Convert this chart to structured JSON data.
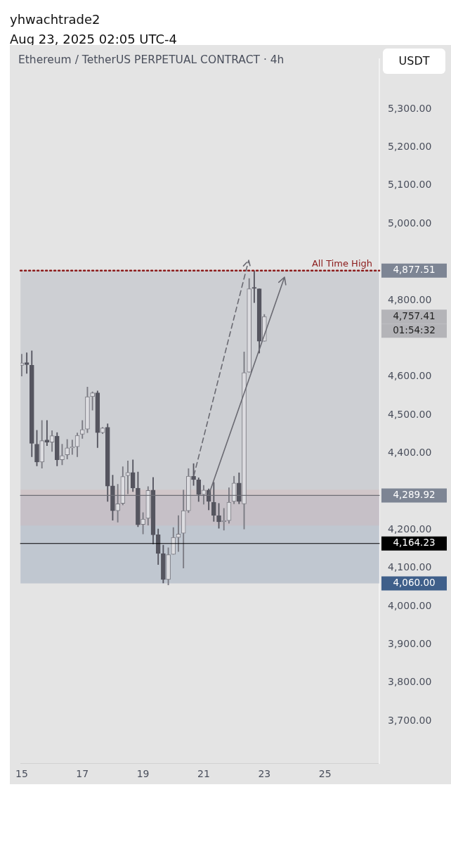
{
  "chart_data": {
    "type": "candlestick",
    "title": "Ethereum / TetherUS PERPETUAL CONTRACT · 4h",
    "subtitle": "yhwachtrade2",
    "ylabel": "USDT",
    "x": [
      "2025-08-15T00:00",
      "2025-08-15T04:00",
      "2025-08-15T08:00",
      "2025-08-15T12:00",
      "2025-08-15T16:00",
      "2025-08-15T20:00",
      "2025-08-16T00:00",
      "2025-08-16T04:00",
      "2025-08-16T08:00",
      "2025-08-16T12:00",
      "2025-08-16T16:00",
      "2025-08-16T20:00",
      "2025-08-17T00:00",
      "2025-08-17T04:00",
      "2025-08-17T08:00",
      "2025-08-17T12:00",
      "2025-08-17T16:00",
      "2025-08-17T20:00",
      "2025-08-18T00:00",
      "2025-08-18T04:00",
      "2025-08-18T08:00",
      "2025-08-18T12:00",
      "2025-08-18T16:00",
      "2025-08-18T20:00",
      "2025-08-19T00:00",
      "2025-08-19T04:00",
      "2025-08-19T08:00",
      "2025-08-19T12:00",
      "2025-08-19T16:00",
      "2025-08-19T20:00",
      "2025-08-20T00:00",
      "2025-08-20T04:00",
      "2025-08-20T08:00",
      "2025-08-20T12:00",
      "2025-08-20T16:00",
      "2025-08-20T20:00",
      "2025-08-21T00:00",
      "2025-08-21T04:00",
      "2025-08-21T08:00",
      "2025-08-21T12:00",
      "2025-08-21T16:00",
      "2025-08-21T20:00",
      "2025-08-22T00:00",
      "2025-08-22T04:00",
      "2025-08-22T08:00",
      "2025-08-22T12:00",
      "2025-08-22T16:00",
      "2025-08-22T20:00",
      "2025-08-23T00:00"
    ],
    "ohlc": [
      [
        4630,
        4659,
        4602,
        4636
      ],
      [
        4637,
        4663,
        4609,
        4632
      ],
      [
        4630,
        4668,
        4391,
        4426
      ],
      [
        4424,
        4460,
        4367,
        4377
      ],
      [
        4377,
        4486,
        4361,
        4433
      ],
      [
        4435,
        4486,
        4420,
        4429
      ],
      [
        4429,
        4459,
        4405,
        4446
      ],
      [
        4445,
        4454,
        4367,
        4383
      ],
      [
        4383,
        4424,
        4370,
        4394
      ],
      [
        4396,
        4436,
        4385,
        4414
      ],
      [
        4414,
        4435,
        4397,
        4417
      ],
      [
        4417,
        4453,
        4391,
        4447
      ],
      [
        4450,
        4486,
        4439,
        4462
      ],
      [
        4463,
        4573,
        4454,
        4548
      ],
      [
        4548,
        4561,
        4513,
        4558
      ],
      [
        4558,
        4563,
        4415,
        4454
      ],
      [
        4454,
        4468,
        4451,
        4466
      ],
      [
        4468,
        4477,
        4274,
        4314
      ],
      [
        4315,
        4343,
        4225,
        4250
      ],
      [
        4250,
        4319,
        4220,
        4268
      ],
      [
        4269,
        4365,
        4265,
        4339
      ],
      [
        4342,
        4380,
        4294,
        4350
      ],
      [
        4350,
        4383,
        4300,
        4309
      ],
      [
        4309,
        4351,
        4208,
        4213
      ],
      [
        4214,
        4245,
        4189,
        4228
      ],
      [
        4230,
        4313,
        4212,
        4303
      ],
      [
        4304,
        4337,
        4163,
        4187
      ],
      [
        4187,
        4202,
        4109,
        4138
      ],
      [
        4138,
        4160,
        4061,
        4070
      ],
      [
        4070,
        4153,
        4056,
        4135
      ],
      [
        4136,
        4206,
        4136,
        4180
      ],
      [
        4180,
        4237,
        4143,
        4189
      ],
      [
        4191,
        4304,
        4100,
        4250
      ],
      [
        4250,
        4360,
        4245,
        4340
      ],
      [
        4340,
        4373,
        4316,
        4331
      ],
      [
        4331,
        4336,
        4274,
        4292
      ],
      [
        4292,
        4316,
        4267,
        4304
      ],
      [
        4304,
        4307,
        4252,
        4274
      ],
      [
        4272,
        4324,
        4222,
        4238
      ],
      [
        4237,
        4269,
        4204,
        4221
      ],
      [
        4221,
        4256,
        4199,
        4224
      ],
      [
        4224,
        4310,
        4217,
        4272
      ],
      [
        4274,
        4340,
        4268,
        4322
      ],
      [
        4322,
        4349,
        4268,
        4274
      ],
      [
        4268,
        4665,
        4202,
        4611
      ],
      [
        4612,
        4857,
        4612,
        4830
      ],
      [
        4834,
        4877,
        4794,
        4831
      ],
      [
        4830,
        4830,
        4662,
        4693
      ],
      [
        4693,
        4763,
        4693,
        4757.41
      ]
    ],
    "xlim": [
      "2025-08-14T23:00",
      "2025-08-26T19:00"
    ],
    "xticks": [
      {
        "value": "2025-08-15",
        "label": "15"
      },
      {
        "value": "2025-08-17",
        "label": "17"
      },
      {
        "value": "2025-08-19",
        "label": "19"
      },
      {
        "value": "2025-08-21",
        "label": "21"
      },
      {
        "value": "2025-08-23",
        "label": "23"
      },
      {
        "value": "2025-08-25",
        "label": "25"
      }
    ],
    "ylim": [
      3590,
      5430
    ],
    "yticks": [
      {
        "value": 3700,
        "label": "3,700.00"
      },
      {
        "value": 3800,
        "label": "3,800.00"
      },
      {
        "value": 3900,
        "label": "3,900.00"
      },
      {
        "value": 4000,
        "label": "4,000.00"
      },
      {
        "value": 4100,
        "label": "4,100.00"
      },
      {
        "value": 4200,
        "label": "4,200.00"
      },
      {
        "value": 4400,
        "label": "4,400.00"
      },
      {
        "value": 4500,
        "label": "4,500.00"
      },
      {
        "value": 4600,
        "label": "4,600.00"
      },
      {
        "value": 4800,
        "label": "4,800.00"
      },
      {
        "value": 5000,
        "label": "5,000.00"
      },
      {
        "value": 5100,
        "label": "5,100.00"
      },
      {
        "value": 5200,
        "label": "5,200.00"
      },
      {
        "value": 5300,
        "label": "5,300.00"
      }
    ],
    "grid": false,
    "ref_lines": [
      {
        "axis": "y",
        "value": 4877.51,
        "label": "All Time High",
        "color": "#8b1a1a",
        "line_style": "dotted"
      },
      {
        "axis": "y",
        "value": 4164.23,
        "label": null,
        "color": "#000000",
        "line_style": "solid"
      },
      {
        "axis": "y",
        "value": 4289.92,
        "label": null,
        "color": "#6e6e76",
        "line_style": "solid"
      }
    ],
    "bands": [
      {
        "axis": "y",
        "from": 4289.92,
        "to": 4877.51,
        "label": null,
        "color": "#7d8594"
      },
      {
        "axis": "y",
        "from": 4060,
        "to": 4289.92,
        "label": null,
        "color": "#3f5f8a"
      },
      {
        "axis": "y",
        "from": 4211,
        "to": 4305,
        "label": null,
        "color": "#d9a9a9"
      }
    ],
    "annotations": [
      "Aug 23, 2025 02:05 UTC-4",
      {
        "text": "4,877.51",
        "x": "2025-08-26T19:00",
        "y": 4877.51
      },
      {
        "text": "4,757.41",
        "x": "2025-08-26T19:00",
        "y": 4757.41
      },
      {
        "text": "01:54:32",
        "x": "2025-08-26T19:00",
        "y": 4757.41
      },
      {
        "text": "4,289.92",
        "x": "2025-08-26T19:00",
        "y": 4289.92
      },
      {
        "text": "4,164.23",
        "x": "2025-08-26T19:00",
        "y": 4164.23
      },
      {
        "text": "4,060.00",
        "x": "2025-08-26T19:00",
        "y": 4060
      }
    ]
  }
}
